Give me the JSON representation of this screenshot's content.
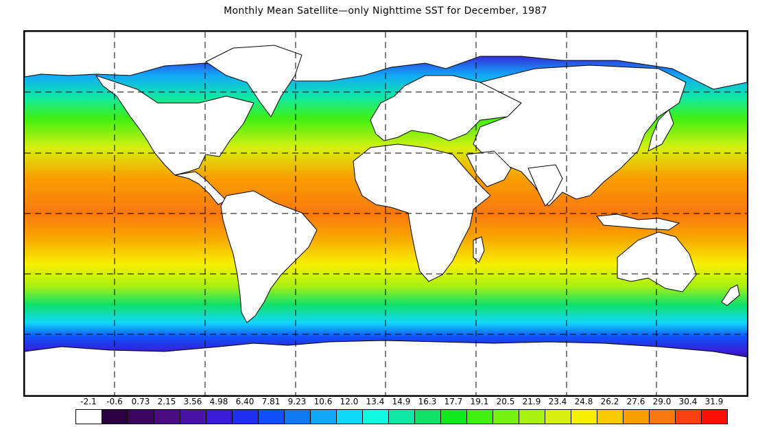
{
  "title": "Monthly Mean Satellite—only Nighttime SST for December, 1987",
  "legend": {
    "labels": [
      "-2.1",
      "-0.6",
      "0.73",
      "2.15",
      "3.56",
      "4.98",
      "6.40",
      "7.81",
      "9.23",
      "10.6",
      "12.0",
      "13.4",
      "14.9",
      "16.3",
      "17.7",
      "19.1",
      "20.5",
      "21.9",
      "23.4",
      "24.8",
      "26.2",
      "27.6",
      "29.0",
      "30.4",
      "31.9"
    ],
    "colors": [
      "#ffffff",
      "#2a0040",
      "#3a0660",
      "#4a0c80",
      "#4a14a8",
      "#3a1cd8",
      "#2030f0",
      "#1050f8",
      "#1078f0",
      "#10a8f8",
      "#10d8f8",
      "#10f8e0",
      "#10e8a8",
      "#10e068",
      "#10e820",
      "#40f010",
      "#78f010",
      "#a8f010",
      "#d8f010",
      "#f8f000",
      "#f8c800",
      "#f8a000",
      "#f87810",
      "#f84010",
      "#f81008"
    ]
  },
  "map": {
    "projection": "equirectangular",
    "grid": "dashed 60° x 30°",
    "continents": [
      "North America",
      "South America",
      "Europe",
      "Africa",
      "Asia",
      "Australia",
      "Antarctica",
      "Greenland"
    ]
  }
}
